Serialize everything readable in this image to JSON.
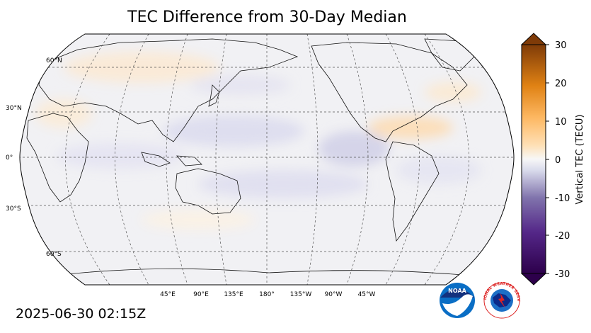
{
  "title": "TEC Difference from 30-Day Median",
  "timestamp": "2025-06-30 02:15Z",
  "map": {
    "projection": "Robinson",
    "central_longitude": 180,
    "lat_labels": [
      "60°N",
      "30°N",
      "0°",
      "30°S",
      "60°S"
    ],
    "lon_labels": [
      "45°E",
      "90°E",
      "135°E",
      "180°",
      "135°W",
      "90°W",
      "45°W"
    ],
    "background_color": "#f2f2f5"
  },
  "colorbar": {
    "label": "Vertical TEC (TECU)",
    "ticks": [
      "30",
      "20",
      "10",
      "0",
      "-10",
      "-20",
      "-30"
    ],
    "range": [
      -30,
      30
    ],
    "extend": "both",
    "colors": {
      "low": "#2d004b",
      "mid_low": "#8073ac",
      "neutral": "#f7f7f7",
      "mid_high": "#fdb863",
      "high": "#7f3b08"
    }
  },
  "logos": {
    "noaa_text": "NOAA",
    "nws_text": "NATIONAL WEATHER SERVICE"
  }
}
